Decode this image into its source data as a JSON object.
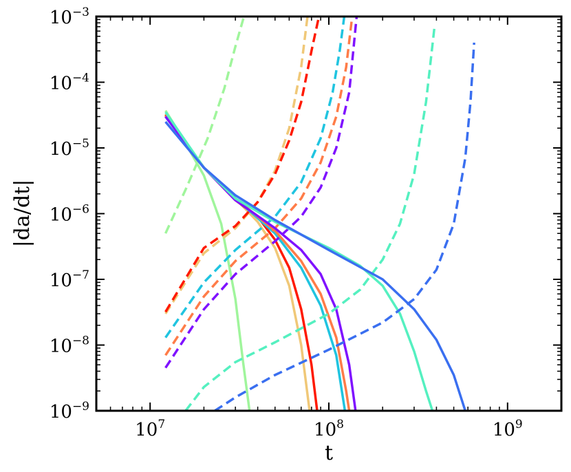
{
  "chart_data": {
    "type": "line",
    "title": "",
    "xlabel": "t",
    "ylabel": "|da/dt|",
    "x_scale": "log",
    "y_scale": "log",
    "xlim": [
      5000000,
      2000000000
    ],
    "ylim": [
      1e-09,
      0.001
    ],
    "grid": false,
    "legend": "none",
    "x_ticks": [
      {
        "base": "10",
        "exp": "7",
        "value": 10000000
      },
      {
        "base": "10",
        "exp": "8",
        "value": 100000000
      },
      {
        "base": "10",
        "exp": "9",
        "value": 1000000000
      }
    ],
    "y_ticks": [
      {
        "base": "10",
        "exp": "−9",
        "value": 1e-09
      },
      {
        "base": "10",
        "exp": "−8",
        "value": 1e-08
      },
      {
        "base": "10",
        "exp": "−7",
        "value": 1e-07
      },
      {
        "base": "10",
        "exp": "−6",
        "value": 1e-06
      },
      {
        "base": "10",
        "exp": "−5",
        "value": 1e-05
      },
      {
        "base": "10",
        "exp": "−4",
        "value": 0.0001
      },
      {
        "base": "10",
        "exp": "−3",
        "value": 0.001
      }
    ],
    "series": [
      {
        "color": "#a0f59c",
        "style": "solid",
        "points": [
          [
            12200000,
            3.7e-05
          ],
          [
            15000000,
            1.5e-05
          ],
          [
            20000000,
            3.8e-06
          ],
          [
            25000000,
            7e-07
          ],
          [
            30000000,
            5e-08
          ],
          [
            33000000,
            6e-09
          ],
          [
            36000000,
            1e-09
          ]
        ]
      },
      {
        "color": "#a0f59c",
        "style": "dashed",
        "points": [
          [
            12200000,
            5e-07
          ],
          [
            16000000,
            2.5e-06
          ],
          [
            21000000,
            1.4e-05
          ],
          [
            26000000,
            8e-05
          ],
          [
            30000000,
            0.00035
          ],
          [
            33500000,
            0.001
          ]
        ]
      },
      {
        "color": "#f0c878",
        "style": "solid",
        "points": [
          [
            12200000,
            3.3e-05
          ],
          [
            20000000,
            5e-06
          ],
          [
            30000000,
            1.7e-06
          ],
          [
            40000000,
            7.5e-07
          ],
          [
            50000000,
            3e-07
          ],
          [
            60000000,
            8e-08
          ],
          [
            70000000,
            1e-08
          ],
          [
            78000000,
            1e-09
          ]
        ]
      },
      {
        "color": "#f0c878",
        "style": "dashed",
        "points": [
          [
            12200000,
            3e-08
          ],
          [
            20000000,
            2.5e-07
          ],
          [
            30000000,
            6e-07
          ],
          [
            40000000,
            1.5e-06
          ],
          [
            50000000,
            4.5e-06
          ],
          [
            60000000,
            2e-05
          ],
          [
            70000000,
            0.00017
          ],
          [
            76000000,
            0.001
          ]
        ]
      },
      {
        "color": "#ff1a00",
        "style": "solid",
        "points": [
          [
            12200000,
            3.2e-05
          ],
          [
            20000000,
            5e-06
          ],
          [
            30000000,
            1.6e-06
          ],
          [
            40000000,
            9e-07
          ],
          [
            50000000,
            4e-07
          ],
          [
            60000000,
            1.5e-07
          ],
          [
            70000000,
            3.5e-08
          ],
          [
            80000000,
            5e-09
          ],
          [
            86000000,
            1e-09
          ]
        ]
      },
      {
        "color": "#ff1a00",
        "style": "dashed",
        "points": [
          [
            12200000,
            3.2e-08
          ],
          [
            20000000,
            3e-07
          ],
          [
            30000000,
            6.5e-07
          ],
          [
            40000000,
            1.5e-06
          ],
          [
            50000000,
            4e-06
          ],
          [
            60000000,
            1.3e-05
          ],
          [
            70000000,
            5e-05
          ],
          [
            80000000,
            0.0003
          ],
          [
            88000000,
            0.001
          ]
        ]
      },
      {
        "color": "#20c4e0",
        "style": "solid",
        "points": [
          [
            12200000,
            3e-05
          ],
          [
            20000000,
            5e-06
          ],
          [
            30000000,
            1.7e-06
          ],
          [
            50000000,
            5e-07
          ],
          [
            70000000,
            1.5e-07
          ],
          [
            90000000,
            4e-08
          ],
          [
            110000000,
            7e-09
          ],
          [
            123000000,
            1e-09
          ]
        ]
      },
      {
        "color": "#20c4e0",
        "style": "dashed",
        "points": [
          [
            12200000,
            1.3e-08
          ],
          [
            20000000,
            9e-08
          ],
          [
            30000000,
            2.8e-07
          ],
          [
            50000000,
            9e-07
          ],
          [
            70000000,
            3e-06
          ],
          [
            90000000,
            1.4e-05
          ],
          [
            105000000,
            7e-05
          ],
          [
            115000000,
            0.0003
          ],
          [
            122000000,
            0.001
          ]
        ]
      },
      {
        "color": "#ff7c48",
        "style": "solid",
        "points": [
          [
            12200000,
            3.1e-05
          ],
          [
            20000000,
            5e-06
          ],
          [
            30000000,
            1.7e-06
          ],
          [
            50000000,
            5.5e-07
          ],
          [
            70000000,
            1.9e-07
          ],
          [
            90000000,
            6e-08
          ],
          [
            110000000,
            1.3e-08
          ],
          [
            125000000,
            2e-09
          ],
          [
            130000000,
            1e-09
          ]
        ]
      },
      {
        "color": "#ff7c48",
        "style": "dashed",
        "points": [
          [
            12200000,
            7e-09
          ],
          [
            20000000,
            5.5e-08
          ],
          [
            30000000,
            1.9e-07
          ],
          [
            50000000,
            6e-07
          ],
          [
            70000000,
            1.7e-06
          ],
          [
            90000000,
            6e-06
          ],
          [
            110000000,
            3e-05
          ],
          [
            125000000,
            0.00017
          ],
          [
            135000000,
            0.001
          ]
        ]
      },
      {
        "color": "#7f12ff",
        "style": "solid",
        "points": [
          [
            12200000,
            3e-05
          ],
          [
            20000000,
            5e-06
          ],
          [
            30000000,
            1.6e-06
          ],
          [
            50000000,
            6e-07
          ],
          [
            70000000,
            2.8e-07
          ],
          [
            90000000,
            1.2e-07
          ],
          [
            110000000,
            3.5e-08
          ],
          [
            130000000,
            5e-09
          ],
          [
            141000000,
            1e-09
          ]
        ]
      },
      {
        "color": "#7f12ff",
        "style": "dashed",
        "points": [
          [
            12200000,
            4.5e-09
          ],
          [
            20000000,
            3.5e-08
          ],
          [
            30000000,
            1.2e-07
          ],
          [
            50000000,
            3.8e-07
          ],
          [
            70000000,
            9e-07
          ],
          [
            90000000,
            2.5e-06
          ],
          [
            110000000,
            1e-05
          ],
          [
            130000000,
            7e-05
          ],
          [
            143000000,
            0.001
          ]
        ]
      },
      {
        "color": "#55f0c0",
        "style": "solid",
        "points": [
          [
            12200000,
            3.5e-05
          ],
          [
            20000000,
            5e-06
          ],
          [
            30000000,
            1.7e-06
          ],
          [
            50000000,
            7.5e-07
          ],
          [
            100000000,
            3e-07
          ],
          [
            150000000,
            1.6e-07
          ],
          [
            200000000,
            8e-08
          ],
          [
            250000000,
            3e-08
          ],
          [
            300000000,
            8e-09
          ],
          [
            350000000,
            2e-09
          ],
          [
            380000000,
            1e-09
          ]
        ]
      },
      {
        "color": "#55f0c0",
        "style": "dashed",
        "points": [
          [
            15800000,
            1e-09
          ],
          [
            20000000,
            2.3e-09
          ],
          [
            30000000,
            5.5e-09
          ],
          [
            50000000,
            1.1e-08
          ],
          [
            100000000,
            3e-08
          ],
          [
            150000000,
            7e-08
          ],
          [
            200000000,
            2e-07
          ],
          [
            250000000,
            7e-07
          ],
          [
            300000000,
            4e-06
          ],
          [
            350000000,
            5e-05
          ],
          [
            390000000,
            0.0007
          ]
        ]
      },
      {
        "color": "#3a6ff0",
        "style": "solid",
        "points": [
          [
            12200000,
            2.5e-05
          ],
          [
            20000000,
            5e-06
          ],
          [
            30000000,
            1.9e-06
          ],
          [
            50000000,
            8e-07
          ],
          [
            100000000,
            2.8e-07
          ],
          [
            200000000,
            1e-07
          ],
          [
            300000000,
            3.5e-08
          ],
          [
            400000000,
            1.2e-08
          ],
          [
            500000000,
            3.5e-09
          ],
          [
            580000000,
            1e-09
          ]
        ]
      },
      {
        "color": "#3a6ff0",
        "style": "dashed",
        "points": [
          [
            23000000,
            1e-09
          ],
          [
            30000000,
            1.6e-09
          ],
          [
            50000000,
            3.5e-09
          ],
          [
            100000000,
            8.5e-09
          ],
          [
            200000000,
            2.2e-08
          ],
          [
            300000000,
            5e-08
          ],
          [
            400000000,
            1.4e-07
          ],
          [
            500000000,
            7e-07
          ],
          [
            580000000,
            7e-06
          ],
          [
            620000000,
            5e-05
          ],
          [
            650000000,
            0.0004
          ]
        ]
      }
    ]
  }
}
